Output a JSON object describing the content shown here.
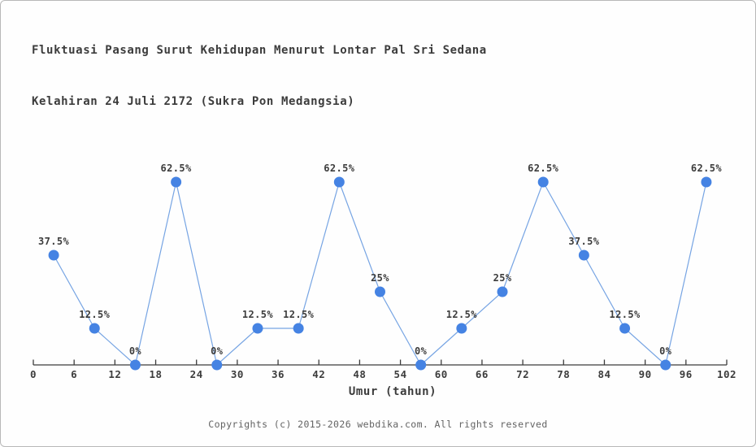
{
  "page": {
    "title_line1": "Fluktuasi Pasang Surut Kehidupan Menurut Lontar Pal Sri Sedana",
    "title_line2": "Kelahiran 24 Juli 2172 (Sukra Pon Medangsia)",
    "footer": "Copyrights (c) 2015-2026 webdika.com. All rights reserved"
  },
  "chart_data": {
    "type": "line",
    "title": "Fluktuasi Pasang Surut Kehidupan Menurut Lontar Pal Sri Sedana Kelahiran 24 Juli 2172 (Sukra Pon Medangsia)",
    "xlabel": "Umur (tahun)",
    "ylabel": "",
    "x": [
      3,
      9,
      15,
      21,
      27,
      33,
      39,
      45,
      51,
      57,
      63,
      69,
      75,
      81,
      87,
      93,
      99
    ],
    "values": [
      37.5,
      12.5,
      0,
      62.5,
      0,
      12.5,
      12.5,
      62.5,
      25,
      0,
      12.5,
      25,
      62.5,
      37.5,
      12.5,
      0,
      62.5
    ],
    "point_labels": [
      "37.5%",
      "12.5%",
      "0%",
      "62.5%",
      "0%",
      "12.5%",
      "12.5%",
      "62.5%",
      "25%",
      "0%",
      "12.5%",
      "25%",
      "62.5%",
      "37.5%",
      "12.5%",
      "0%",
      "62.5%"
    ],
    "x_ticks": [
      0,
      6,
      12,
      18,
      24,
      30,
      36,
      42,
      48,
      54,
      60,
      66,
      72,
      78,
      84,
      90,
      96,
      102
    ],
    "xlim": [
      0,
      102
    ],
    "ylim": [
      0,
      70
    ],
    "grid": false,
    "legend": "none",
    "colors": {
      "line": "#76a4e3",
      "marker": "#4583e3",
      "axis": "#3c3c3c",
      "label_text": "#3c3c3c",
      "footer_text": "#636363"
    }
  }
}
